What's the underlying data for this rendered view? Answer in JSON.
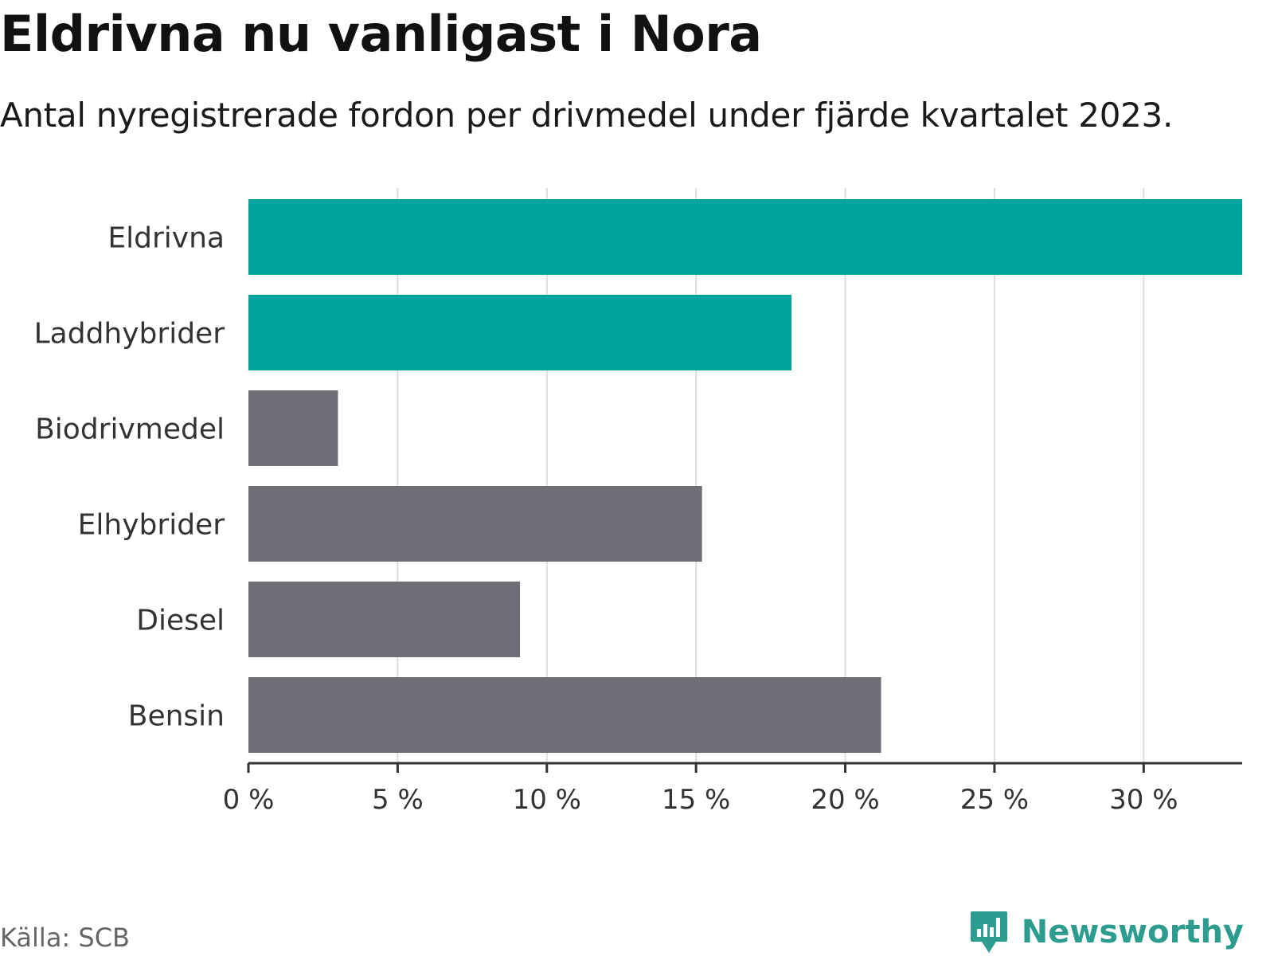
{
  "title": "Eldrivna nu vanligast i Nora",
  "subtitle": "Antal nyregistrerade fordon per drivmedel under fjärde kvartalet 2023.",
  "source": "Källa: SCB",
  "brand": {
    "name": "Newsworthy",
    "icon": "newsworthy-logo-icon"
  },
  "colors": {
    "highlight": "#00a49a",
    "default": "#6e6e76",
    "grid": "#dddddd",
    "axis": "#333333",
    "brand": "#2b9c8e"
  },
  "chart_data": {
    "type": "bar",
    "orientation": "horizontal",
    "title": "Eldrivna nu vanligast i Nora",
    "subtitle": "Antal nyregistrerade fordon per drivmedel under fjärde kvartalet 2023.",
    "xlabel": "",
    "ylabel": "",
    "xlim": [
      0,
      33.3
    ],
    "x_ticks": [
      0,
      5,
      10,
      15,
      20,
      25,
      30
    ],
    "x_tick_labels": [
      "0 %",
      "5 %",
      "10 %",
      "15 %",
      "20 %",
      "25 %",
      "30 %"
    ],
    "grid": true,
    "categories": [
      "Eldrivna",
      "Laddhybrider",
      "Biodrivmedel",
      "Elhybrider",
      "Diesel",
      "Bensin"
    ],
    "values": [
      33.3,
      18.2,
      3.0,
      15.2,
      9.1,
      21.2
    ],
    "highlighted": [
      true,
      true,
      false,
      false,
      false,
      false
    ]
  }
}
